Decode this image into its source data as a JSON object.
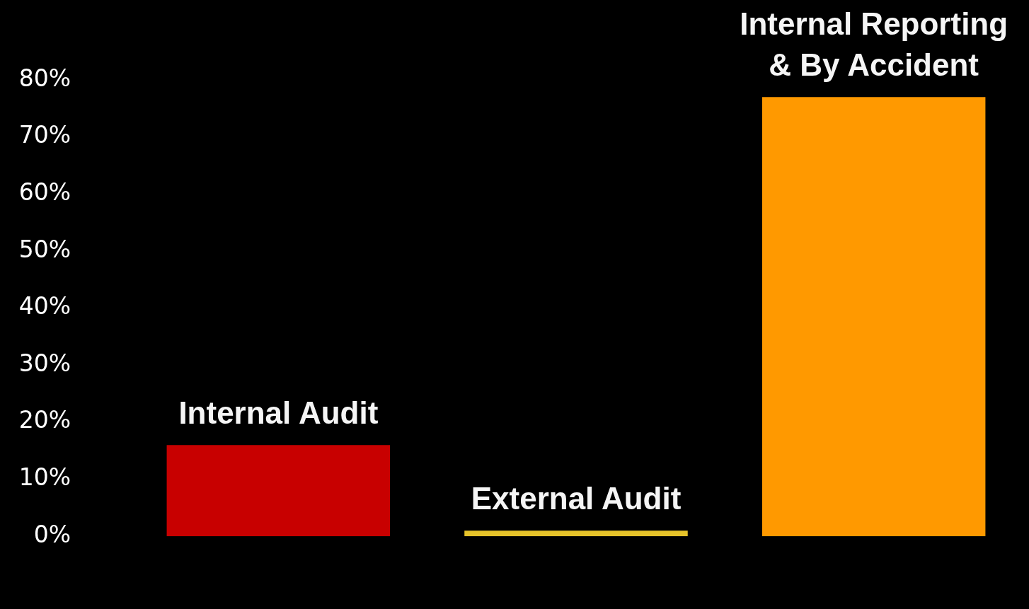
{
  "chart_data": {
    "type": "bar",
    "categories": [
      "Internal Audit",
      "External Audit",
      "Internal Reporting & By Accident"
    ],
    "values": [
      16,
      1,
      77
    ],
    "colors": [
      "#c80000",
      "#e6c32a",
      "#ff9900"
    ],
    "ylim": [
      0,
      80
    ],
    "yticks": [
      {
        "value": 0,
        "label": "0%"
      },
      {
        "value": 10,
        "label": "10%"
      },
      {
        "value": 20,
        "label": "20%"
      },
      {
        "value": 30,
        "label": "30%"
      },
      {
        "value": 40,
        "label": "40%"
      },
      {
        "value": 50,
        "label": "50%"
      },
      {
        "value": 60,
        "label": "60%"
      },
      {
        "value": 70,
        "label": "70%"
      },
      {
        "value": 80,
        "label": "80%"
      }
    ],
    "grid": false,
    "legend": false
  }
}
